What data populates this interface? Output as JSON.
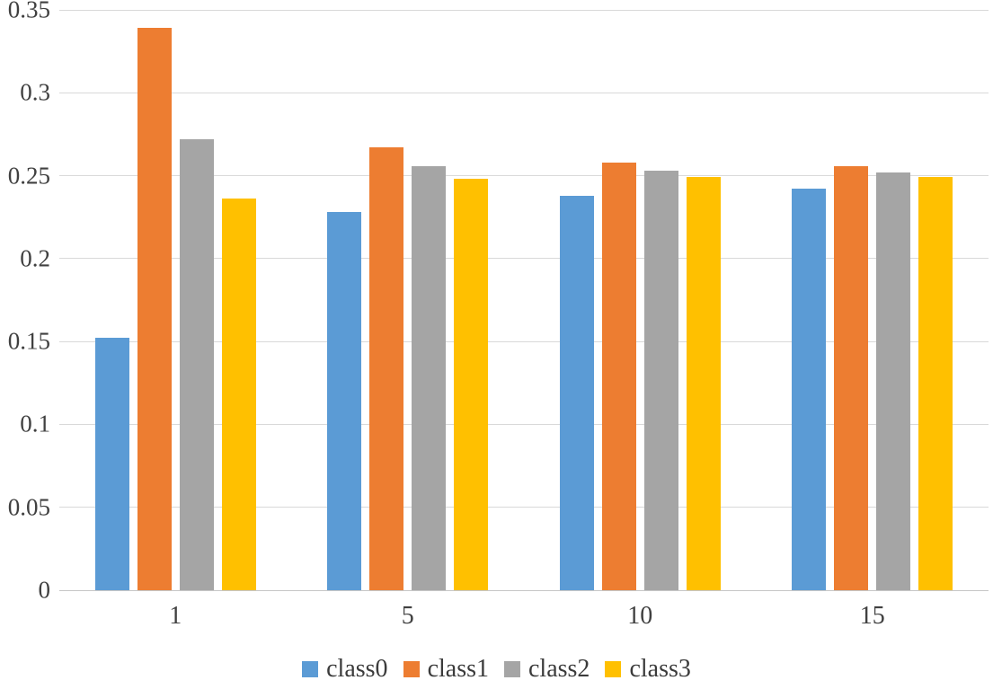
{
  "chart_data": {
    "type": "bar",
    "title": "",
    "xlabel": "",
    "ylabel": "",
    "categories": [
      "1",
      "5",
      "10",
      "15"
    ],
    "series": [
      {
        "name": "class0",
        "color": "#5B9BD5",
        "values": [
          0.152,
          0.228,
          0.238,
          0.242
        ]
      },
      {
        "name": "class1",
        "color": "#ED7D31",
        "values": [
          0.339,
          0.267,
          0.258,
          0.256
        ]
      },
      {
        "name": "class2",
        "color": "#A5A5A5",
        "values": [
          0.272,
          0.256,
          0.253,
          0.252
        ]
      },
      {
        "name": "class3",
        "color": "#FFC000",
        "values": [
          0.236,
          0.248,
          0.249,
          0.249
        ]
      }
    ],
    "ylim": [
      0,
      0.35
    ],
    "ytick_step": 0.05,
    "ytick_labels": [
      "0",
      "0.05",
      "0.1",
      "0.15",
      "0.2",
      "0.25",
      "0.3",
      "0.35"
    ],
    "grid": true,
    "gridline_color": "#d9d9d9",
    "axis_text_color": "#404040",
    "legend_position": "bottom",
    "legend_marker": "square"
  }
}
